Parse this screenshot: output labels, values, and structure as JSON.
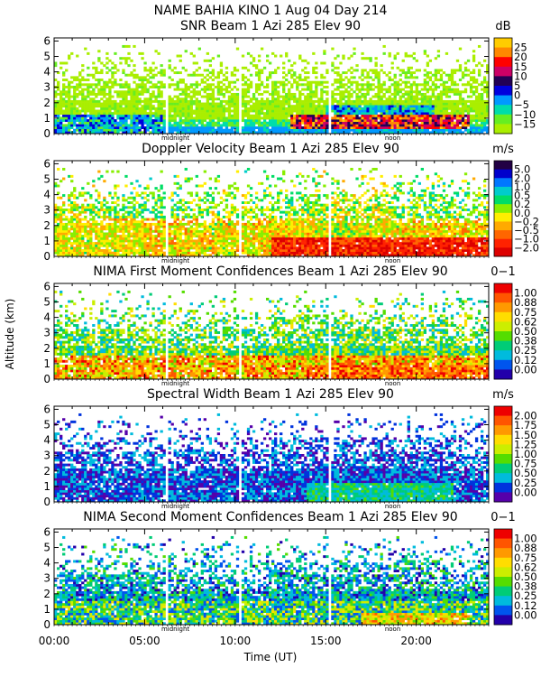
{
  "figure": {
    "main_title": "NAME BAHIA KINO    1 Aug 04 Day 214",
    "ylabel": "Altitude (km)",
    "xlabel": "Time (UT)",
    "x_tick_labels": [
      "00:00",
      "05:00",
      "10:00",
      "15:00",
      "20:00"
    ],
    "x_tick_values": [
      0,
      5,
      10,
      15,
      20
    ],
    "x_range": [
      0,
      24
    ],
    "midnight_label": "midnight",
    "midnight_time": 6.7,
    "noon_label": "noon",
    "noon_time": 18.7
  },
  "chart_data": [
    {
      "type": "heatmap",
      "title": "SNR Beam 1 Azi 285 Elev 90",
      "unit": "dB",
      "field": "snr",
      "ylim": [
        0,
        6.2
      ],
      "y_ticks": [
        "0",
        "1",
        "2",
        "3",
        "4",
        "5",
        "6"
      ],
      "colorbar_labels": [
        "25",
        "20",
        "15",
        "10",
        "5",
        "0",
        "−5",
        "−10",
        "−15"
      ],
      "colors": [
        "#ffcc00",
        "#ff8800",
        "#ff0000",
        "#cc0066",
        "#220055",
        "#0000dd",
        "#0099ff",
        "#00ddaa",
        "#66ee22",
        "#aaee00"
      ]
    },
    {
      "type": "heatmap",
      "title": "Doppler Velocity Beam 1 Azi 285 Elev 90",
      "unit": "m/s",
      "field": "vel",
      "ylim": [
        0,
        6.2
      ],
      "y_ticks": [
        "0",
        "1",
        "2",
        "3",
        "4",
        "5",
        "6"
      ],
      "colorbar_labels": [
        "5.0",
        "2.0",
        "1.0",
        "0.5",
        "0.2",
        "0.0",
        "−0.2",
        "−0.5",
        "−1.0",
        "−2.0"
      ],
      "colors": [
        "#220044",
        "#0000cc",
        "#0077ff",
        "#00cccc",
        "#00dd66",
        "#88ee00",
        "#ffee00",
        "#ffaa00",
        "#ff6600",
        "#ff2200",
        "#dd0000"
      ]
    },
    {
      "type": "heatmap",
      "title": "NIMA First Moment Confidences Beam 1 Azi 285 Elev 90",
      "unit": "0−1",
      "field": "conf1",
      "ylim": [
        0,
        6.2
      ],
      "y_ticks": [
        "0",
        "1",
        "2",
        "3",
        "4",
        "5",
        "6"
      ],
      "colorbar_labels": [
        "1.00",
        "0.88",
        "0.75",
        "0.62",
        "0.50",
        "0.38",
        "0.25",
        "0.12",
        "0.00"
      ],
      "colors": [
        "#ee0000",
        "#ff5500",
        "#ff9900",
        "#ffdd00",
        "#ccee00",
        "#55dd00",
        "#00cc77",
        "#00bbdd",
        "#0055ee",
        "#2200aa"
      ]
    },
    {
      "type": "heatmap",
      "title": "Spectral Width Beam 1 Azi 285 Elev 90",
      "unit": "m/s",
      "field": "width",
      "ylim": [
        0,
        6.2
      ],
      "y_ticks": [
        "0",
        "1",
        "2",
        "3",
        "4",
        "5",
        "6"
      ],
      "colorbar_labels": [
        "2.00",
        "1.75",
        "1.50",
        "1.25",
        "1.00",
        "0.75",
        "0.50",
        "0.25",
        "0.00"
      ],
      "colors": [
        "#ee0000",
        "#ff5500",
        "#ff9900",
        "#ffdd00",
        "#ccee00",
        "#55dd00",
        "#00cc77",
        "#00bbdd",
        "#0033dd",
        "#5500aa"
      ]
    },
    {
      "type": "heatmap",
      "title": "NIMA Second Moment Confidences Beam 1 Azi 285 Elev 90",
      "unit": "0−1",
      "field": "conf2",
      "ylim": [
        0,
        6.2
      ],
      "y_ticks": [
        "0",
        "1",
        "2",
        "3",
        "4",
        "5",
        "6"
      ],
      "colorbar_labels": [
        "1.00",
        "0.88",
        "0.75",
        "0.62",
        "0.50",
        "0.38",
        "0.25",
        "0.12",
        "0.00"
      ],
      "colors": [
        "#ee0000",
        "#ff5500",
        "#ff9900",
        "#ffdd00",
        "#ccee00",
        "#55dd00",
        "#00cc77",
        "#00bbdd",
        "#0055ee",
        "#2200aa"
      ]
    }
  ]
}
